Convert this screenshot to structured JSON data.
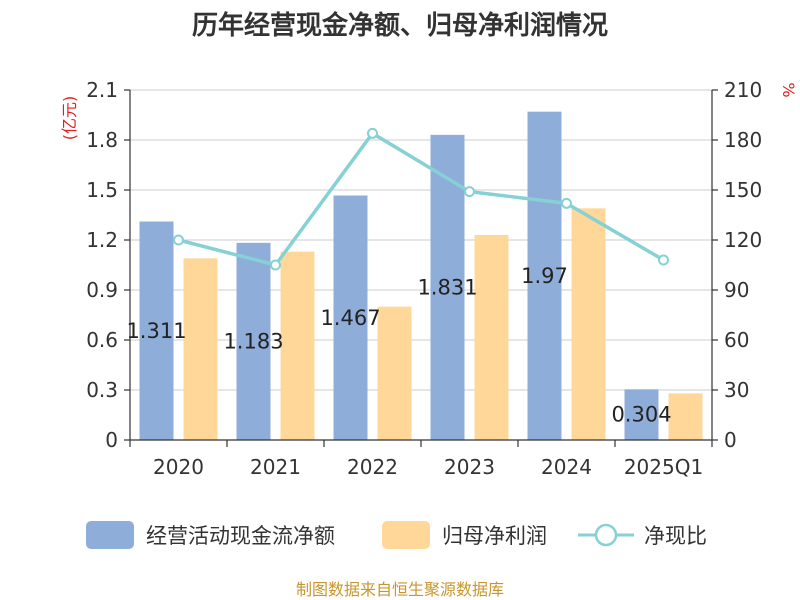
{
  "chart_data": {
    "type": "bar",
    "title": "历年经营现金净额、归母净利润情况",
    "categories": [
      "2020",
      "2021",
      "2022",
      "2023",
      "2024",
      "2025Q1"
    ],
    "series": [
      {
        "name": "经营活动现金流净额",
        "type": "bar",
        "axis": "left",
        "color": "#8fadd9",
        "values": [
          1.311,
          1.183,
          1.467,
          1.831,
          1.97,
          0.304
        ],
        "data_labels": [
          "1.311",
          "1.183",
          "1.467",
          "1.831",
          "1.97",
          "0.304"
        ]
      },
      {
        "name": "归母净利润",
        "type": "bar",
        "axis": "left",
        "color": "#ffd899",
        "values": [
          1.09,
          1.13,
          0.8,
          1.23,
          1.39,
          0.28
        ]
      },
      {
        "name": "净现比",
        "type": "line",
        "axis": "right",
        "color": "#86d1d5",
        "values": [
          120,
          105,
          184,
          149,
          142,
          108
        ]
      }
    ],
    "y_left": {
      "unit": "(亿元)",
      "min": 0,
      "max": 2.1,
      "ticks": [
        "0",
        "0.3",
        "0.6",
        "0.9",
        "1.2",
        "1.5",
        "1.8",
        "2.1"
      ]
    },
    "y_right": {
      "unit": "%",
      "min": 0,
      "max": 210,
      "ticks": [
        "0",
        "30",
        "60",
        "90",
        "120",
        "150",
        "180",
        "210"
      ]
    },
    "grid": true,
    "legend_position": "bottom"
  },
  "footer": {
    "source": "制图数据来自恒生聚源数据库"
  }
}
